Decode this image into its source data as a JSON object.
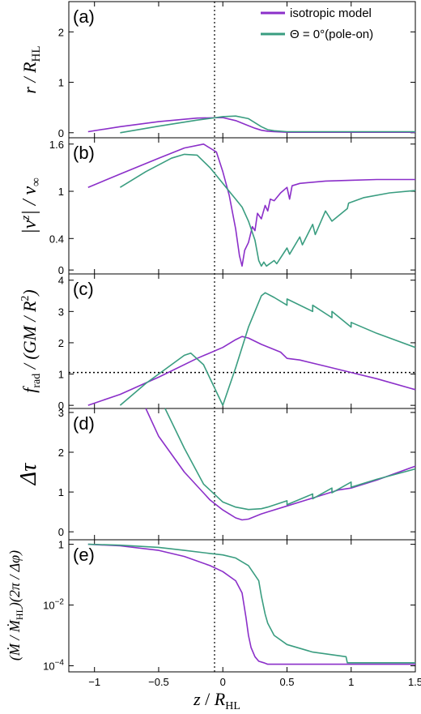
{
  "colors": {
    "isotropic": "#8b2fc9",
    "pole_on": "#3a9d80",
    "axis": "#000000"
  },
  "legend": {
    "placement": "top-right",
    "entries": [
      "isotropic model",
      "Θ = 0°(pole-on)"
    ]
  },
  "xaxis": {
    "label": "z / R_HL",
    "label_main": "z",
    "label_sep": " / ",
    "label_R": "R",
    "label_sub": "HL",
    "ticks": [
      "−1",
      "−0.5",
      "0",
      "0.5",
      "1",
      "1.5"
    ],
    "range": [
      -1.2,
      1.5
    ]
  },
  "chart_data": [
    {
      "type": "line",
      "panel": "(a)",
      "ylabel": "r / R_HL",
      "ylabel_main": "r / R",
      "ylabel_sub": "HL",
      "xlim": [
        -1.2,
        1.5
      ],
      "ylim": [
        -0.1,
        2.6
      ],
      "yticks": [
        "0",
        "1",
        "2"
      ],
      "ytick_values": [
        0,
        1,
        2
      ],
      "series": [
        {
          "name": "isotropic model",
          "x": [
            -1.05,
            -0.8,
            -0.5,
            -0.2,
            0.0,
            0.1,
            0.2,
            0.25,
            0.3,
            0.35,
            0.4,
            0.5,
            1.0,
            1.5
          ],
          "y": [
            0.02,
            0.12,
            0.22,
            0.29,
            0.3,
            0.24,
            0.14,
            0.09,
            0.05,
            0.03,
            0.02,
            0.01,
            0.01,
            0.01
          ]
        },
        {
          "name": "Θ = 0°(pole-on)",
          "x": [
            -0.8,
            -0.5,
            -0.2,
            0.0,
            0.1,
            0.2,
            0.3,
            0.35,
            0.4,
            0.5,
            1.0,
            1.5
          ],
          "y": [
            0.0,
            0.13,
            0.25,
            0.32,
            0.33,
            0.28,
            0.12,
            0.06,
            0.04,
            0.02,
            0.02,
            0.02
          ]
        }
      ]
    },
    {
      "type": "line",
      "panel": "(b)",
      "ylabel": "|v_z| / v_∞",
      "ylabel_main": "|v",
      "ylabel_sub1": "z",
      "ylabel_mid": "| / v",
      "ylabel_sub2": "∞",
      "xlim": [
        -1.2,
        1.5
      ],
      "ylim": [
        -0.05,
        1.68
      ],
      "yticks": [
        "0",
        "0.4",
        "1",
        "1.6"
      ],
      "ytick_values": [
        0,
        0.4,
        1,
        1.6
      ],
      "series": [
        {
          "name": "isotropic model",
          "x": [
            -1.05,
            -0.8,
            -0.5,
            -0.3,
            -0.15,
            -0.05,
            0.0,
            0.05,
            0.1,
            0.13,
            0.15,
            0.17,
            0.2,
            0.23,
            0.25,
            0.27,
            0.3,
            0.33,
            0.35,
            0.37,
            0.4,
            0.45,
            0.5,
            0.52,
            0.54,
            0.6,
            0.8,
            1.0,
            1.2,
            1.5
          ],
          "y": [
            1.05,
            1.22,
            1.42,
            1.55,
            1.6,
            1.5,
            1.25,
            0.95,
            0.52,
            0.18,
            0.05,
            0.25,
            0.35,
            0.55,
            0.5,
            0.72,
            0.65,
            0.82,
            0.75,
            0.9,
            0.88,
            0.98,
            1.05,
            0.9,
            1.07,
            1.1,
            1.13,
            1.14,
            1.15,
            1.15
          ]
        },
        {
          "name": "Θ = 0°(pole-on)",
          "x": [
            -0.8,
            -0.6,
            -0.4,
            -0.3,
            -0.2,
            -0.1,
            0.0,
            0.05,
            0.1,
            0.15,
            0.2,
            0.25,
            0.28,
            0.3,
            0.32,
            0.34,
            0.4,
            0.42,
            0.5,
            0.52,
            0.6,
            0.62,
            0.7,
            0.72,
            0.8,
            0.85,
            0.97,
            0.98,
            1.1,
            1.3,
            1.5
          ],
          "y": [
            1.05,
            1.25,
            1.42,
            1.47,
            1.46,
            1.3,
            1.1,
            1.0,
            0.9,
            0.8,
            0.62,
            0.38,
            0.12,
            0.05,
            0.1,
            0.05,
            0.12,
            0.08,
            0.28,
            0.2,
            0.42,
            0.32,
            0.58,
            0.45,
            0.75,
            0.62,
            0.78,
            0.85,
            0.92,
            0.98,
            1.01
          ]
        }
      ]
    },
    {
      "type": "line",
      "panel": "(c)",
      "ylabel": "f_rad / (GM / R²)",
      "ylabel_f": "f",
      "ylabel_sub": "rad",
      "ylabel_rest": " / (GM / R",
      "ylabel_sup": "2",
      "ylabel_end": ")",
      "xlim": [
        -1.2,
        1.5
      ],
      "ylim": [
        -0.1,
        4.2
      ],
      "yticks": [
        "0",
        "1",
        "2",
        "3",
        "4"
      ],
      "ytick_values": [
        0,
        1,
        2,
        3,
        4
      ],
      "reference_line": {
        "y": 1.05,
        "style": "dotted"
      },
      "series": [
        {
          "name": "isotropic model",
          "x": [
            -1.05,
            -0.8,
            -0.5,
            -0.2,
            0.0,
            0.1,
            0.15,
            0.2,
            0.3,
            0.45,
            0.5,
            0.6,
            0.8,
            1.0,
            1.2,
            1.5
          ],
          "y": [
            0.0,
            0.35,
            0.9,
            1.5,
            1.85,
            2.1,
            2.2,
            2.15,
            1.95,
            1.7,
            1.5,
            1.45,
            1.25,
            1.05,
            0.85,
            0.5
          ]
        },
        {
          "name": "Θ = 0°(pole-on)",
          "x": [
            -0.8,
            -0.6,
            -0.4,
            -0.3,
            -0.25,
            -0.15,
            0.0,
            0.1,
            0.2,
            0.3,
            0.33,
            0.4,
            0.5,
            0.5,
            0.7,
            0.7,
            0.85,
            0.85,
            1.0,
            1.0,
            1.2,
            1.5
          ],
          "y": [
            0.0,
            0.7,
            1.3,
            1.6,
            1.67,
            1.3,
            0.0,
            1.2,
            2.5,
            3.5,
            3.6,
            3.45,
            3.2,
            3.4,
            3.0,
            3.2,
            2.8,
            3.0,
            2.5,
            2.65,
            2.3,
            1.85
          ]
        }
      ]
    },
    {
      "type": "line",
      "panel": "(d)",
      "ylabel": "Δτ",
      "xlim": [
        -1.2,
        1.5
      ],
      "ylim": [
        -0.2,
        3.1
      ],
      "yticks": [
        "0",
        "1",
        "2",
        "3"
      ],
      "ytick_values": [
        0,
        1,
        2,
        3
      ],
      "series": [
        {
          "name": "isotropic model",
          "x": [
            -0.6,
            -0.5,
            -0.3,
            -0.1,
            0.0,
            0.1,
            0.15,
            0.2,
            0.3,
            0.35,
            0.5,
            0.7,
            0.9,
            1.0,
            1.2,
            1.5
          ],
          "y": [
            3.1,
            2.4,
            1.5,
            0.8,
            0.55,
            0.35,
            0.3,
            0.32,
            0.45,
            0.5,
            0.65,
            0.85,
            1.05,
            1.1,
            1.3,
            1.65
          ]
        },
        {
          "name": "Θ = 0°(pole-on)",
          "x": [
            -0.45,
            -0.3,
            -0.15,
            0.0,
            0.1,
            0.2,
            0.3,
            0.35,
            0.5,
            0.5,
            0.7,
            0.7,
            0.85,
            0.85,
            1.0,
            1.0,
            1.2,
            1.5
          ],
          "y": [
            3.1,
            2.1,
            1.2,
            0.75,
            0.62,
            0.56,
            0.58,
            0.62,
            0.78,
            0.68,
            0.95,
            0.83,
            1.1,
            0.98,
            1.25,
            1.12,
            1.32,
            1.58
          ]
        }
      ]
    },
    {
      "type": "line",
      "panel": "(e)",
      "ylabel": "(Ṁ / Ṁ_HL)(2π / Δφ)",
      "ylabel_pre": "(",
      "ylabel_M": "Ṁ",
      "ylabel_mid": " / ",
      "ylabel_M2": "Ṁ",
      "ylabel_sub": "HL",
      "ylabel_post": ")(2π / Δφ)",
      "xlim": [
        -1.2,
        1.5
      ],
      "ylim": [
        -4.2,
        0.15
      ],
      "yscale": "log",
      "yticks": [
        "10",
        "10",
        "1"
      ],
      "ytick_sup": [
        "−4",
        "−2",
        ""
      ],
      "ytick_values": [
        -4,
        -2,
        0
      ],
      "series": [
        {
          "name": "isotropic model",
          "x": [
            -1.05,
            -0.8,
            -0.5,
            -0.3,
            -0.1,
            0.0,
            0.1,
            0.15,
            0.18,
            0.2,
            0.22,
            0.25,
            0.28,
            0.32,
            0.35,
            0.5,
            0.8,
            1.0,
            1.5
          ],
          "y": [
            0.0,
            -0.05,
            -0.2,
            -0.4,
            -0.7,
            -0.9,
            -1.2,
            -1.6,
            -2.4,
            -3.0,
            -3.4,
            -3.7,
            -3.85,
            -3.9,
            -3.95,
            -3.95,
            -3.95,
            -3.95,
            -3.95
          ]
        },
        {
          "name": "Θ = 0°(pole-on)",
          "x": [
            -1.05,
            -0.8,
            -0.5,
            -0.3,
            -0.1,
            0.0,
            0.1,
            0.2,
            0.28,
            0.3,
            0.33,
            0.35,
            0.4,
            0.5,
            0.7,
            0.96,
            0.97,
            1.2,
            1.5
          ],
          "y": [
            0.0,
            -0.03,
            -0.1,
            -0.2,
            -0.3,
            -0.35,
            -0.45,
            -0.7,
            -1.2,
            -1.7,
            -2.3,
            -2.6,
            -3.0,
            -3.3,
            -3.55,
            -3.7,
            -3.9,
            -3.9,
            -3.9
          ]
        }
      ]
    }
  ]
}
